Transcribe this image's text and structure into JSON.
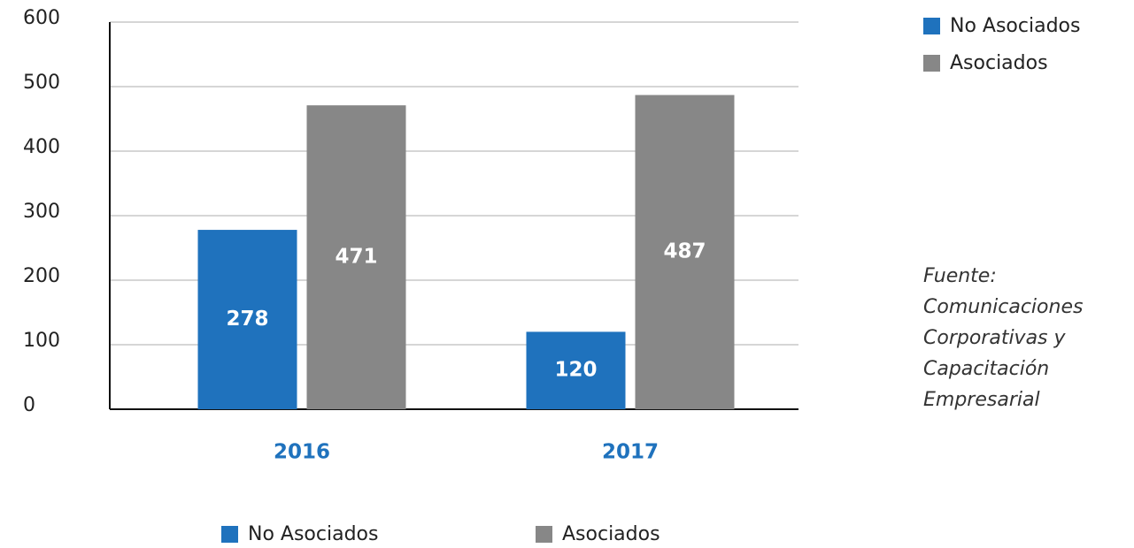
{
  "chart_data": {
    "type": "bar",
    "categories": [
      "2016",
      "2017"
    ],
    "series": [
      {
        "name": "No Asociados",
        "color": "#1f72bd",
        "values": [
          278,
          120
        ]
      },
      {
        "name": "Asociados",
        "color": "#878787",
        "values": [
          471,
          487
        ]
      }
    ],
    "ylim": [
      0,
      600
    ],
    "yticks": [
      0,
      100,
      200,
      300,
      400,
      500,
      600
    ],
    "grid": true,
    "legend": [
      "top-right",
      "bottom"
    ],
    "annotations": [
      "Fuente:",
      "Comunicaciones",
      "Corporativas y",
      "Capacitación",
      "Empresarial"
    ]
  }
}
